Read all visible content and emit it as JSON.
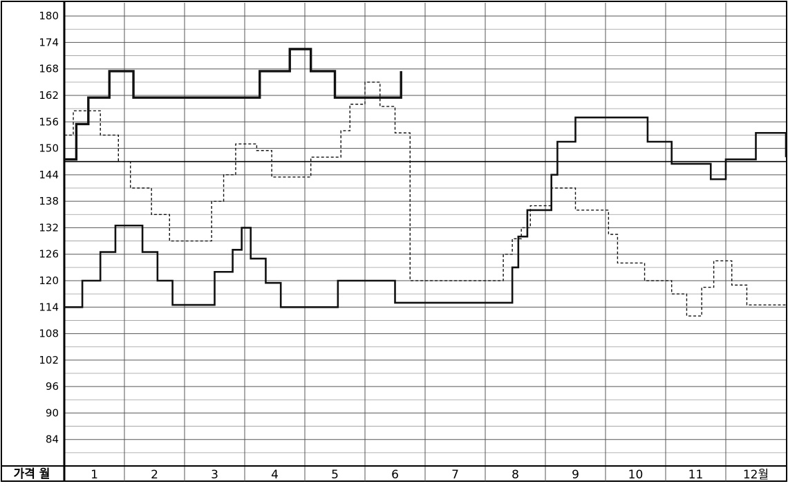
{
  "chart_data": {
    "type": "line",
    "step": true,
    "corner_label": "가격 월",
    "x_categories": [
      "1",
      "2",
      "3",
      "4",
      "5",
      "6",
      "7",
      "8",
      "9",
      "10",
      "11",
      "12월"
    ],
    "x_domain": [
      0,
      12
    ],
    "ylim": [
      78,
      183
    ],
    "y_ticks": [
      84,
      90,
      96,
      102,
      108,
      114,
      120,
      126,
      132,
      138,
      144,
      150,
      156,
      162,
      168,
      174,
      180
    ],
    "minor_grid_step": 3,
    "reference_line": 147,
    "grid": true,
    "series": [
      {
        "style": "thick-solid",
        "x": [
          0.0,
          0.2,
          0.4,
          0.75,
          1.15,
          2.15,
          3.25,
          3.75,
          4.1,
          4.5,
          5.6
        ],
        "y": [
          147.5,
          155.5,
          161.5,
          167.5,
          161.5,
          161.5,
          167.5,
          172.5,
          167.5,
          161.5,
          167.5
        ]
      },
      {
        "style": "dashed",
        "x": [
          0.0,
          0.15,
          0.6,
          0.9,
          1.1,
          1.45,
          1.75,
          2.35,
          2.45,
          2.65,
          2.85,
          3.2,
          3.45,
          3.75,
          4.1,
          4.6,
          4.75,
          5.0,
          5.25,
          5.5,
          5.75,
          6.0,
          6.3,
          7.05,
          7.3,
          7.45,
          7.6,
          7.75,
          7.9,
          8.1,
          8.5,
          8.85,
          9.05,
          9.2,
          9.65,
          9.9,
          10.1,
          10.35,
          10.6,
          10.8,
          11.1,
          11.35,
          11.55,
          12.0
        ],
        "y": [
          153,
          158.5,
          153,
          147,
          141,
          135,
          129,
          129,
          138,
          144,
          151,
          149.5,
          143.5,
          143.5,
          148,
          154,
          160,
          165,
          159.5,
          153.5,
          120,
          120,
          120,
          120,
          126,
          129.5,
          132,
          137,
          137,
          141,
          136,
          136,
          130.5,
          124,
          120,
          120,
          117,
          112,
          118.5,
          124.5,
          119,
          114.5,
          114.5,
          114.5
        ]
      },
      {
        "style": "solid",
        "x": [
          0.0,
          0.3,
          0.6,
          0.85,
          1.3,
          1.55,
          1.8,
          2.05,
          2.5,
          2.8,
          2.95,
          3.1,
          3.35,
          3.6,
          4.1,
          4.55,
          5.2,
          5.5,
          7.3,
          7.45,
          7.55,
          7.7,
          7.9,
          8.1,
          8.2,
          8.5,
          9.25,
          9.7,
          10.1,
          10.5,
          10.75,
          11.0,
          11.5,
          11.75,
          12.0
        ],
        "y": [
          114,
          120,
          126.5,
          132.5,
          126.5,
          120,
          114.5,
          114.5,
          122,
          127,
          132,
          125,
          119.5,
          114,
          114,
          120,
          120,
          115,
          115,
          123,
          130,
          136,
          136,
          144,
          151.5,
          157,
          157,
          151.5,
          146.5,
          146.5,
          143,
          147.5,
          153.5,
          153.5,
          148
        ]
      }
    ]
  }
}
